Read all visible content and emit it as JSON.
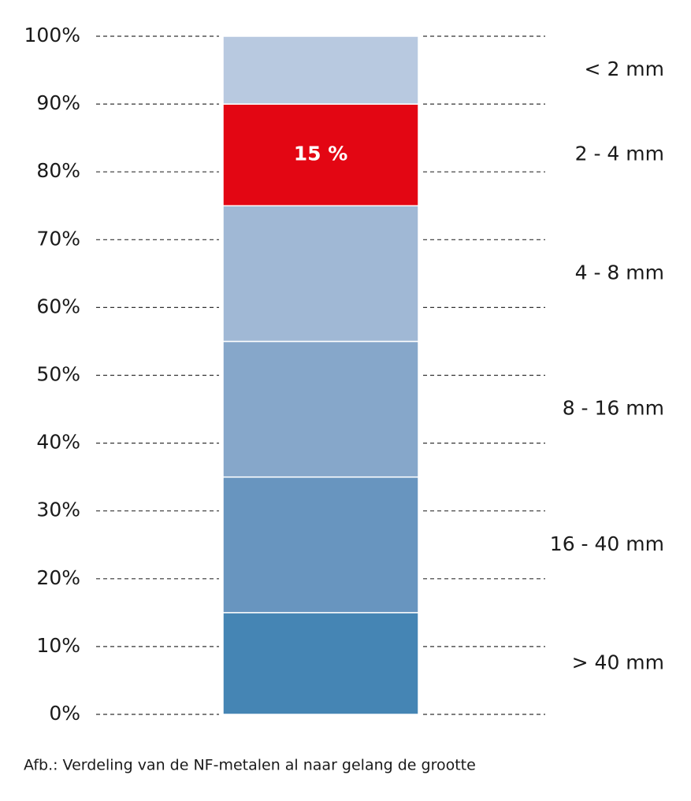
{
  "chart_data": {
    "type": "stacked-bar",
    "caption": "Afb.: Verdeling van de NF-metalen al naar gelang de grootte",
    "categories": [
      null
    ],
    "ylim": [
      0,
      100
    ],
    "yticks": [
      {
        "value": 0,
        "label": "0%"
      },
      {
        "value": 10,
        "label": "10%"
      },
      {
        "value": 20,
        "label": "20%"
      },
      {
        "value": 30,
        "label": "30%"
      },
      {
        "value": 40,
        "label": "40%"
      },
      {
        "value": 50,
        "label": "50%"
      },
      {
        "value": 60,
        "label": "60%"
      },
      {
        "value": 70,
        "label": "70%"
      },
      {
        "value": 80,
        "label": "80%"
      },
      {
        "value": 90,
        "label": "90%"
      },
      {
        "value": 100,
        "label": "100%"
      }
    ],
    "grid": true,
    "series": [
      {
        "name": "> 40 mm",
        "color": "#4585b4",
        "values": [
          15
        ]
      },
      {
        "name": "16 - 40 mm",
        "color": "#6895bf",
        "values": [
          20
        ]
      },
      {
        "name": "8 - 16 mm",
        "color": "#86a7ca",
        "values": [
          20
        ]
      },
      {
        "name": "4 - 8 mm",
        "color": "#a0b8d5",
        "values": [
          20
        ]
      },
      {
        "name": "2 - 4 mm",
        "color": "#e30613",
        "values": [
          15
        ],
        "value_labels": [
          "15 %"
        ]
      },
      {
        "name": "< 2 mm",
        "color": "#b8c9e0",
        "values": [
          10
        ]
      }
    ]
  }
}
